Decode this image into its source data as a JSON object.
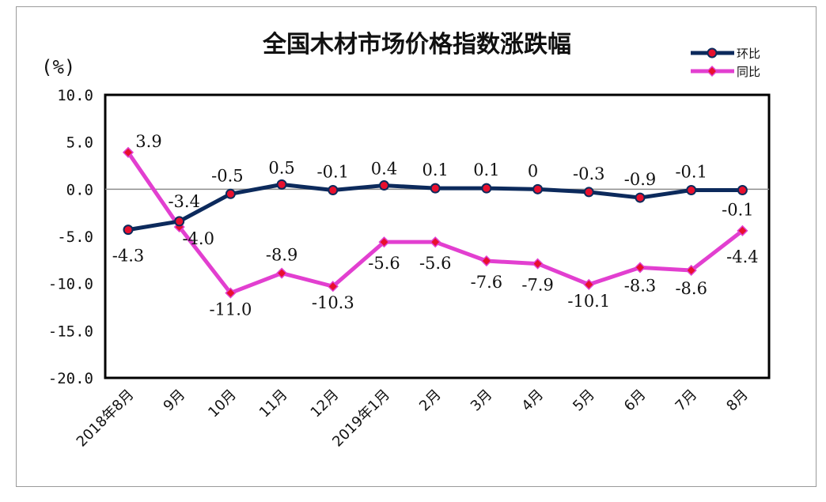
{
  "chart_data": {
    "type": "line",
    "title": "全国木材市场价格指数涨跌幅",
    "unit_label": "(%)",
    "categories": [
      "2018年8月",
      "9月",
      "10月",
      "11月",
      "12月",
      "2019年1月",
      "2月",
      "3月",
      "4月",
      "5月",
      "6月",
      "7月",
      "8月"
    ],
    "series": [
      {
        "name": "环比",
        "color": "#0c2a5c",
        "marker_color": "#e8102e",
        "marker": "circle",
        "values": [
          -4.3,
          -3.4,
          -0.5,
          0.5,
          -0.1,
          0.4,
          0.1,
          0.1,
          0,
          -0.3,
          -0.9,
          -0.1,
          -0.1
        ],
        "labels": [
          "-4.3",
          "-3.4",
          "-0.5",
          "0.5",
          "-0.1",
          "0.4",
          "0.1",
          "0.1",
          "0",
          "-0.3",
          "-0.9",
          "-0.1",
          "-0.1"
        ]
      },
      {
        "name": "同比",
        "color": "#e23fd0",
        "marker_color": "#e8102e",
        "marker": "diamond",
        "values": [
          3.9,
          -4.0,
          -11.0,
          -8.9,
          -10.3,
          -5.6,
          -5.6,
          -7.6,
          -7.9,
          -10.1,
          -8.3,
          -8.6,
          -4.4
        ],
        "labels": [
          "3.9",
          "-4.0",
          "-11.0",
          "-8.9",
          "-10.3",
          "-5.6",
          "-5.6",
          "-7.6",
          "-7.9",
          "-10.1",
          "-8.3",
          "-8.6",
          "-4.4"
        ]
      }
    ],
    "ylim": [
      -20,
      10
    ],
    "yticks": [
      "10.0",
      "5.0",
      "0.0",
      "-5.0",
      "-10.0",
      "-15.0",
      "-20.0"
    ],
    "ytick_values": [
      10,
      5,
      0,
      -5,
      -10,
      -15,
      -20
    ],
    "xlabel": "",
    "ylabel": "",
    "grid": false,
    "legend_position": "top-right"
  }
}
